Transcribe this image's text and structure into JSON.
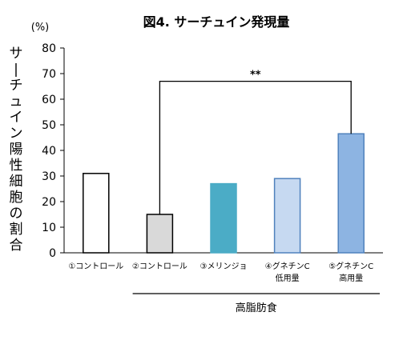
{
  "chart_data": {
    "type": "bar",
    "title": "図4. サーチュイン発現量",
    "unit": "(%)",
    "ylabel": "サーチュイン陽性細胞の割合",
    "ylim": [
      0,
      80
    ],
    "yticks": [
      0,
      10,
      20,
      30,
      40,
      50,
      60,
      70,
      80
    ],
    "categories": [
      [
        "①コントロール"
      ],
      [
        "②コントロール"
      ],
      [
        "③メリンジョ"
      ],
      [
        "④グネチンC",
        "低用量"
      ],
      [
        "⑤グネチンC",
        "高用量"
      ]
    ],
    "values": [
      31,
      15,
      27,
      29,
      46.5
    ],
    "bar_fills": [
      "#ffffff",
      "#d9d9d9",
      "#4bacc6",
      "#c6d9f1",
      "#8db4e2"
    ],
    "bar_strokes": [
      "#000000",
      "#000000",
      "#4bacc6",
      "#4f81bd",
      "#4f81bd"
    ],
    "significance": {
      "label": "**",
      "between": [
        1,
        4
      ],
      "level": 67
    },
    "group_label": {
      "text": "高脂肪食",
      "from": 1,
      "to": 4
    }
  }
}
